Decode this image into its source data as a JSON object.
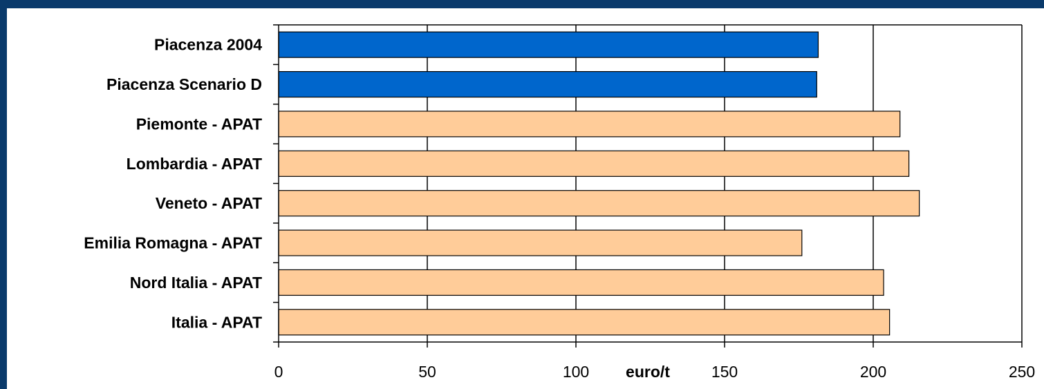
{
  "chart_data": {
    "type": "bar",
    "orientation": "horizontal",
    "categories": [
      "Piacenza 2004",
      "Piacenza Scenario D",
      "Piemonte - APAT",
      "Lombardia - APAT",
      "Veneto - APAT",
      "Emilia Romagna - APAT",
      "Nord Italia - APAT",
      "Italia - APAT"
    ],
    "values": [
      181.5,
      181,
      209,
      212,
      215.5,
      176,
      203.5,
      205.5
    ],
    "bar_colors": [
      "#0066cc",
      "#0066cc",
      "#ffcc99",
      "#ffcc99",
      "#ffcc99",
      "#ffcc99",
      "#ffcc99",
      "#ffcc99"
    ],
    "title": "",
    "xlabel": "euro/t",
    "ylabel": "",
    "xlim": [
      0,
      250
    ],
    "xticks": [
      0,
      50,
      100,
      150,
      200,
      250
    ],
    "grid": "vertical",
    "legend": "none"
  }
}
